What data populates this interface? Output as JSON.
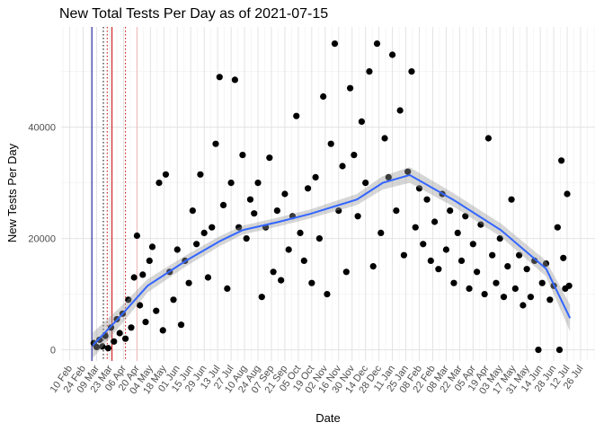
{
  "chart_data": {
    "type": "scatter",
    "title": "New Total Tests Per Day as of 2021-07-15",
    "x_label": "Date",
    "y_label": "New Tests Per Day",
    "xlim": [
      "2020-02-01",
      "2021-08-10"
    ],
    "ylim": [
      -2000,
      58000
    ],
    "yticks": [
      0,
      20000,
      40000
    ],
    "xticks": [
      {
        "value": "2020-02-10",
        "label": "10 Feb"
      },
      {
        "value": "2020-02-24",
        "label": "24 Feb"
      },
      {
        "value": "2020-03-09",
        "label": "09 Mar"
      },
      {
        "value": "2020-03-23",
        "label": "23 Mar"
      },
      {
        "value": "2020-04-06",
        "label": "06 Apr"
      },
      {
        "value": "2020-04-20",
        "label": "20 Apr"
      },
      {
        "value": "2020-05-04",
        "label": "04 May"
      },
      {
        "value": "2020-05-18",
        "label": "18 May"
      },
      {
        "value": "2020-06-01",
        "label": "01 Jun"
      },
      {
        "value": "2020-06-15",
        "label": "15 Jun"
      },
      {
        "value": "2020-06-29",
        "label": "29 Jun"
      },
      {
        "value": "2020-07-13",
        "label": "13 Jul"
      },
      {
        "value": "2020-07-27",
        "label": "27 Jul"
      },
      {
        "value": "2020-08-10",
        "label": "10 Aug"
      },
      {
        "value": "2020-08-24",
        "label": "24 Aug"
      },
      {
        "value": "2020-09-07",
        "label": "07 Sep"
      },
      {
        "value": "2020-09-21",
        "label": "21 Sep"
      },
      {
        "value": "2020-10-05",
        "label": "05 Oct"
      },
      {
        "value": "2020-10-19",
        "label": "19 Oct"
      },
      {
        "value": "2020-11-02",
        "label": "02 Nov"
      },
      {
        "value": "2020-11-16",
        "label": "16 Nov"
      },
      {
        "value": "2020-11-30",
        "label": "30 Nov"
      },
      {
        "value": "2020-12-14",
        "label": "14 Dec"
      },
      {
        "value": "2020-12-28",
        "label": "28 Dec"
      },
      {
        "value": "2021-01-11",
        "label": "11 Jan"
      },
      {
        "value": "2021-01-25",
        "label": "25 Jan"
      },
      {
        "value": "2021-02-08",
        "label": "08 Feb"
      },
      {
        "value": "2021-02-22",
        "label": "22 Feb"
      },
      {
        "value": "2021-03-08",
        "label": "08 Mar"
      },
      {
        "value": "2021-03-22",
        "label": "22 Mar"
      },
      {
        "value": "2021-04-05",
        "label": "05 Apr"
      },
      {
        "value": "2021-04-19",
        "label": "19 Apr"
      },
      {
        "value": "2021-05-03",
        "label": "03 May"
      },
      {
        "value": "2021-05-17",
        "label": "17 May"
      },
      {
        "value": "2021-05-31",
        "label": "31 May"
      },
      {
        "value": "2021-06-14",
        "label": "14 Jun"
      },
      {
        "value": "2021-06-28",
        "label": "28 Jun"
      },
      {
        "value": "2021-07-12",
        "label": "12 Jul"
      },
      {
        "value": "2021-07-26",
        "label": "26 Jul"
      }
    ],
    "grid": true,
    "vlines": [
      {
        "x": "2020-03-04",
        "color": "#00008b",
        "dash": false
      },
      {
        "x": "2020-03-16",
        "color": "#000000",
        "dash": true
      },
      {
        "x": "2020-03-20",
        "color": "#cc0000",
        "dash": true
      },
      {
        "x": "2020-03-25",
        "color": "#cc0000",
        "dash": false
      },
      {
        "x": "2020-04-08",
        "color": "#cc0000",
        "dash": true
      },
      {
        "x": "2020-04-20",
        "color": "#f4b6b6",
        "dash": false
      }
    ],
    "series": [
      {
        "color": "#000000",
        "x": [
          "2020-03-06",
          "2020-03-09",
          "2020-03-12",
          "2020-03-15",
          "2020-03-18",
          "2020-03-21",
          "2020-03-24",
          "2020-03-27",
          "2020-03-30",
          "2020-04-02",
          "2020-04-05",
          "2020-04-08",
          "2020-04-11",
          "2020-04-14",
          "2020-04-17",
          "2020-04-20",
          "2020-04-23",
          "2020-04-26",
          "2020-04-29",
          "2020-05-03",
          "2020-05-06",
          "2020-05-10",
          "2020-05-13",
          "2020-05-17",
          "2020-05-20",
          "2020-05-24",
          "2020-05-28",
          "2020-06-01",
          "2020-06-05",
          "2020-06-09",
          "2020-06-13",
          "2020-06-17",
          "2020-06-21",
          "2020-06-25",
          "2020-06-29",
          "2020-07-03",
          "2020-07-07",
          "2020-07-11",
          "2020-07-15",
          "2020-07-19",
          "2020-07-23",
          "2020-07-27",
          "2020-07-31",
          "2020-08-04",
          "2020-08-08",
          "2020-08-12",
          "2020-08-16",
          "2020-08-20",
          "2020-08-24",
          "2020-08-28",
          "2020-09-01",
          "2020-09-05",
          "2020-09-09",
          "2020-09-13",
          "2020-09-17",
          "2020-09-21",
          "2020-09-25",
          "2020-09-29",
          "2020-10-03",
          "2020-10-07",
          "2020-10-11",
          "2020-10-15",
          "2020-10-19",
          "2020-10-23",
          "2020-10-27",
          "2020-10-31",
          "2020-11-04",
          "2020-11-08",
          "2020-11-12",
          "2020-11-16",
          "2020-11-20",
          "2020-11-24",
          "2020-11-28",
          "2020-12-02",
          "2020-12-06",
          "2020-12-10",
          "2020-12-14",
          "2020-12-18",
          "2020-12-22",
          "2020-12-26",
          "2020-12-30",
          "2021-01-03",
          "2021-01-07",
          "2021-01-11",
          "2021-01-15",
          "2021-01-19",
          "2021-01-23",
          "2021-01-27",
          "2021-01-31",
          "2021-02-04",
          "2021-02-08",
          "2021-02-12",
          "2021-02-16",
          "2021-02-20",
          "2021-02-24",
          "2021-02-28",
          "2021-03-04",
          "2021-03-08",
          "2021-03-12",
          "2021-03-16",
          "2021-03-20",
          "2021-03-24",
          "2021-03-28",
          "2021-04-01",
          "2021-04-05",
          "2021-04-09",
          "2021-04-13",
          "2021-04-17",
          "2021-04-21",
          "2021-04-25",
          "2021-04-29",
          "2021-05-03",
          "2021-05-07",
          "2021-05-11",
          "2021-05-15",
          "2021-05-19",
          "2021-05-23",
          "2021-05-27",
          "2021-05-31",
          "2021-06-04",
          "2021-06-08",
          "2021-06-12",
          "2021-06-16",
          "2021-06-20",
          "2021-06-24",
          "2021-06-28",
          "2021-07-02",
          "2021-07-04",
          "2021-07-06",
          "2021-07-08",
          "2021-07-10",
          "2021-07-12",
          "2021-07-14"
        ],
        "values": [
          1200,
          500,
          1800,
          600,
          2500,
          300,
          4000,
          1500,
          5500,
          3000,
          6500,
          2000,
          9000,
          4000,
          13000,
          20500,
          8000,
          13500,
          5000,
          16000,
          18500,
          7000,
          30000,
          3500,
          31500,
          14000,
          9000,
          18000,
          4500,
          16000,
          12000,
          25000,
          19000,
          31500,
          21000,
          13000,
          22000,
          37000,
          49000,
          26000,
          11000,
          30000,
          48500,
          22000,
          35000,
          20000,
          27000,
          24500,
          30000,
          9500,
          22000,
          34500,
          14000,
          25000,
          12500,
          28000,
          18000,
          24000,
          42000,
          21000,
          16000,
          29000,
          12000,
          31000,
          20000,
          45500,
          10000,
          37000,
          55000,
          25000,
          33000,
          14000,
          47000,
          35000,
          24000,
          41000,
          30000,
          50000,
          15000,
          55000,
          21000,
          38000,
          31000,
          53000,
          25000,
          43000,
          17000,
          32000,
          50000,
          22000,
          29000,
          19000,
          27000,
          16000,
          23000,
          14500,
          28000,
          18000,
          25000,
          12000,
          21000,
          16000,
          24000,
          11000,
          19000,
          14000,
          22500,
          10000,
          38000,
          17000,
          12000,
          20000,
          9500,
          15000,
          27000,
          11000,
          17000,
          8000,
          14500,
          9500,
          16000,
          0,
          12000,
          15500,
          9000,
          11500,
          22000,
          0,
          34000,
          16500,
          11000,
          28000,
          11500
        ]
      }
    ],
    "smooth": {
      "color": "#3366ff",
      "x": [
        "2020-03-05",
        "2020-04-01",
        "2020-05-01",
        "2020-06-10",
        "2020-07-15",
        "2020-08-08",
        "2020-09-15",
        "2020-10-17",
        "2020-12-05",
        "2021-01-01",
        "2021-01-29",
        "2021-03-15",
        "2021-05-04",
        "2021-06-20",
        "2021-07-15"
      ],
      "values": [
        800,
        5700,
        11500,
        16000,
        19500,
        21500,
        23000,
        24400,
        27000,
        30000,
        31400,
        27000,
        21500,
        14600,
        5700
      ],
      "lower": [
        -1500,
        4000,
        10300,
        15000,
        18600,
        20700,
        22200,
        23600,
        26000,
        28800,
        30000,
        25800,
        20300,
        13200,
        3300
      ],
      "upper": [
        3100,
        7400,
        12700,
        17000,
        20400,
        22300,
        23800,
        25200,
        28000,
        31200,
        32800,
        28200,
        22700,
        16000,
        8100
      ]
    }
  }
}
